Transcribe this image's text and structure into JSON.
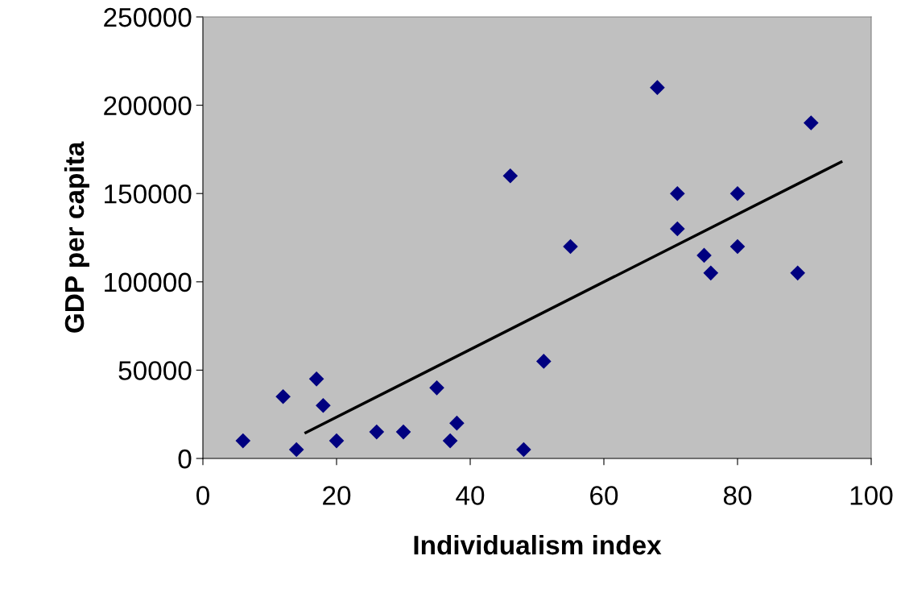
{
  "chart_data": {
    "type": "scatter",
    "xlabel": "Individualism index",
    "ylabel": "GDP per capita",
    "xlim": [
      0,
      100
    ],
    "xticks": [
      0,
      20,
      40,
      60,
      80,
      100
    ],
    "ylim": [
      0,
      250000
    ],
    "yticks": [
      0,
      50000,
      100000,
      150000,
      200000,
      250000
    ],
    "grid": false,
    "legend": false,
    "series": [
      {
        "marker": "diamond",
        "color": "#000080",
        "x": [
          6,
          12,
          14,
          17,
          18,
          20,
          26,
          30,
          35,
          37,
          38,
          46,
          48,
          51,
          55,
          68,
          71,
          71,
          75,
          76,
          80,
          80,
          89,
          91
        ],
        "values": [
          10000,
          35000,
          5000,
          45000,
          30000,
          10000,
          15000,
          15000,
          40000,
          10000,
          20000,
          160000,
          5000,
          55000,
          120000,
          210000,
          150000,
          130000,
          115000,
          105000,
          150000,
          120000,
          105000,
          190000
        ]
      },
      {
        "type": "line",
        "color": "#000000",
        "x": [
          15.4,
          95.5
        ],
        "values": [
          14600,
          167900
        ]
      }
    ]
  }
}
